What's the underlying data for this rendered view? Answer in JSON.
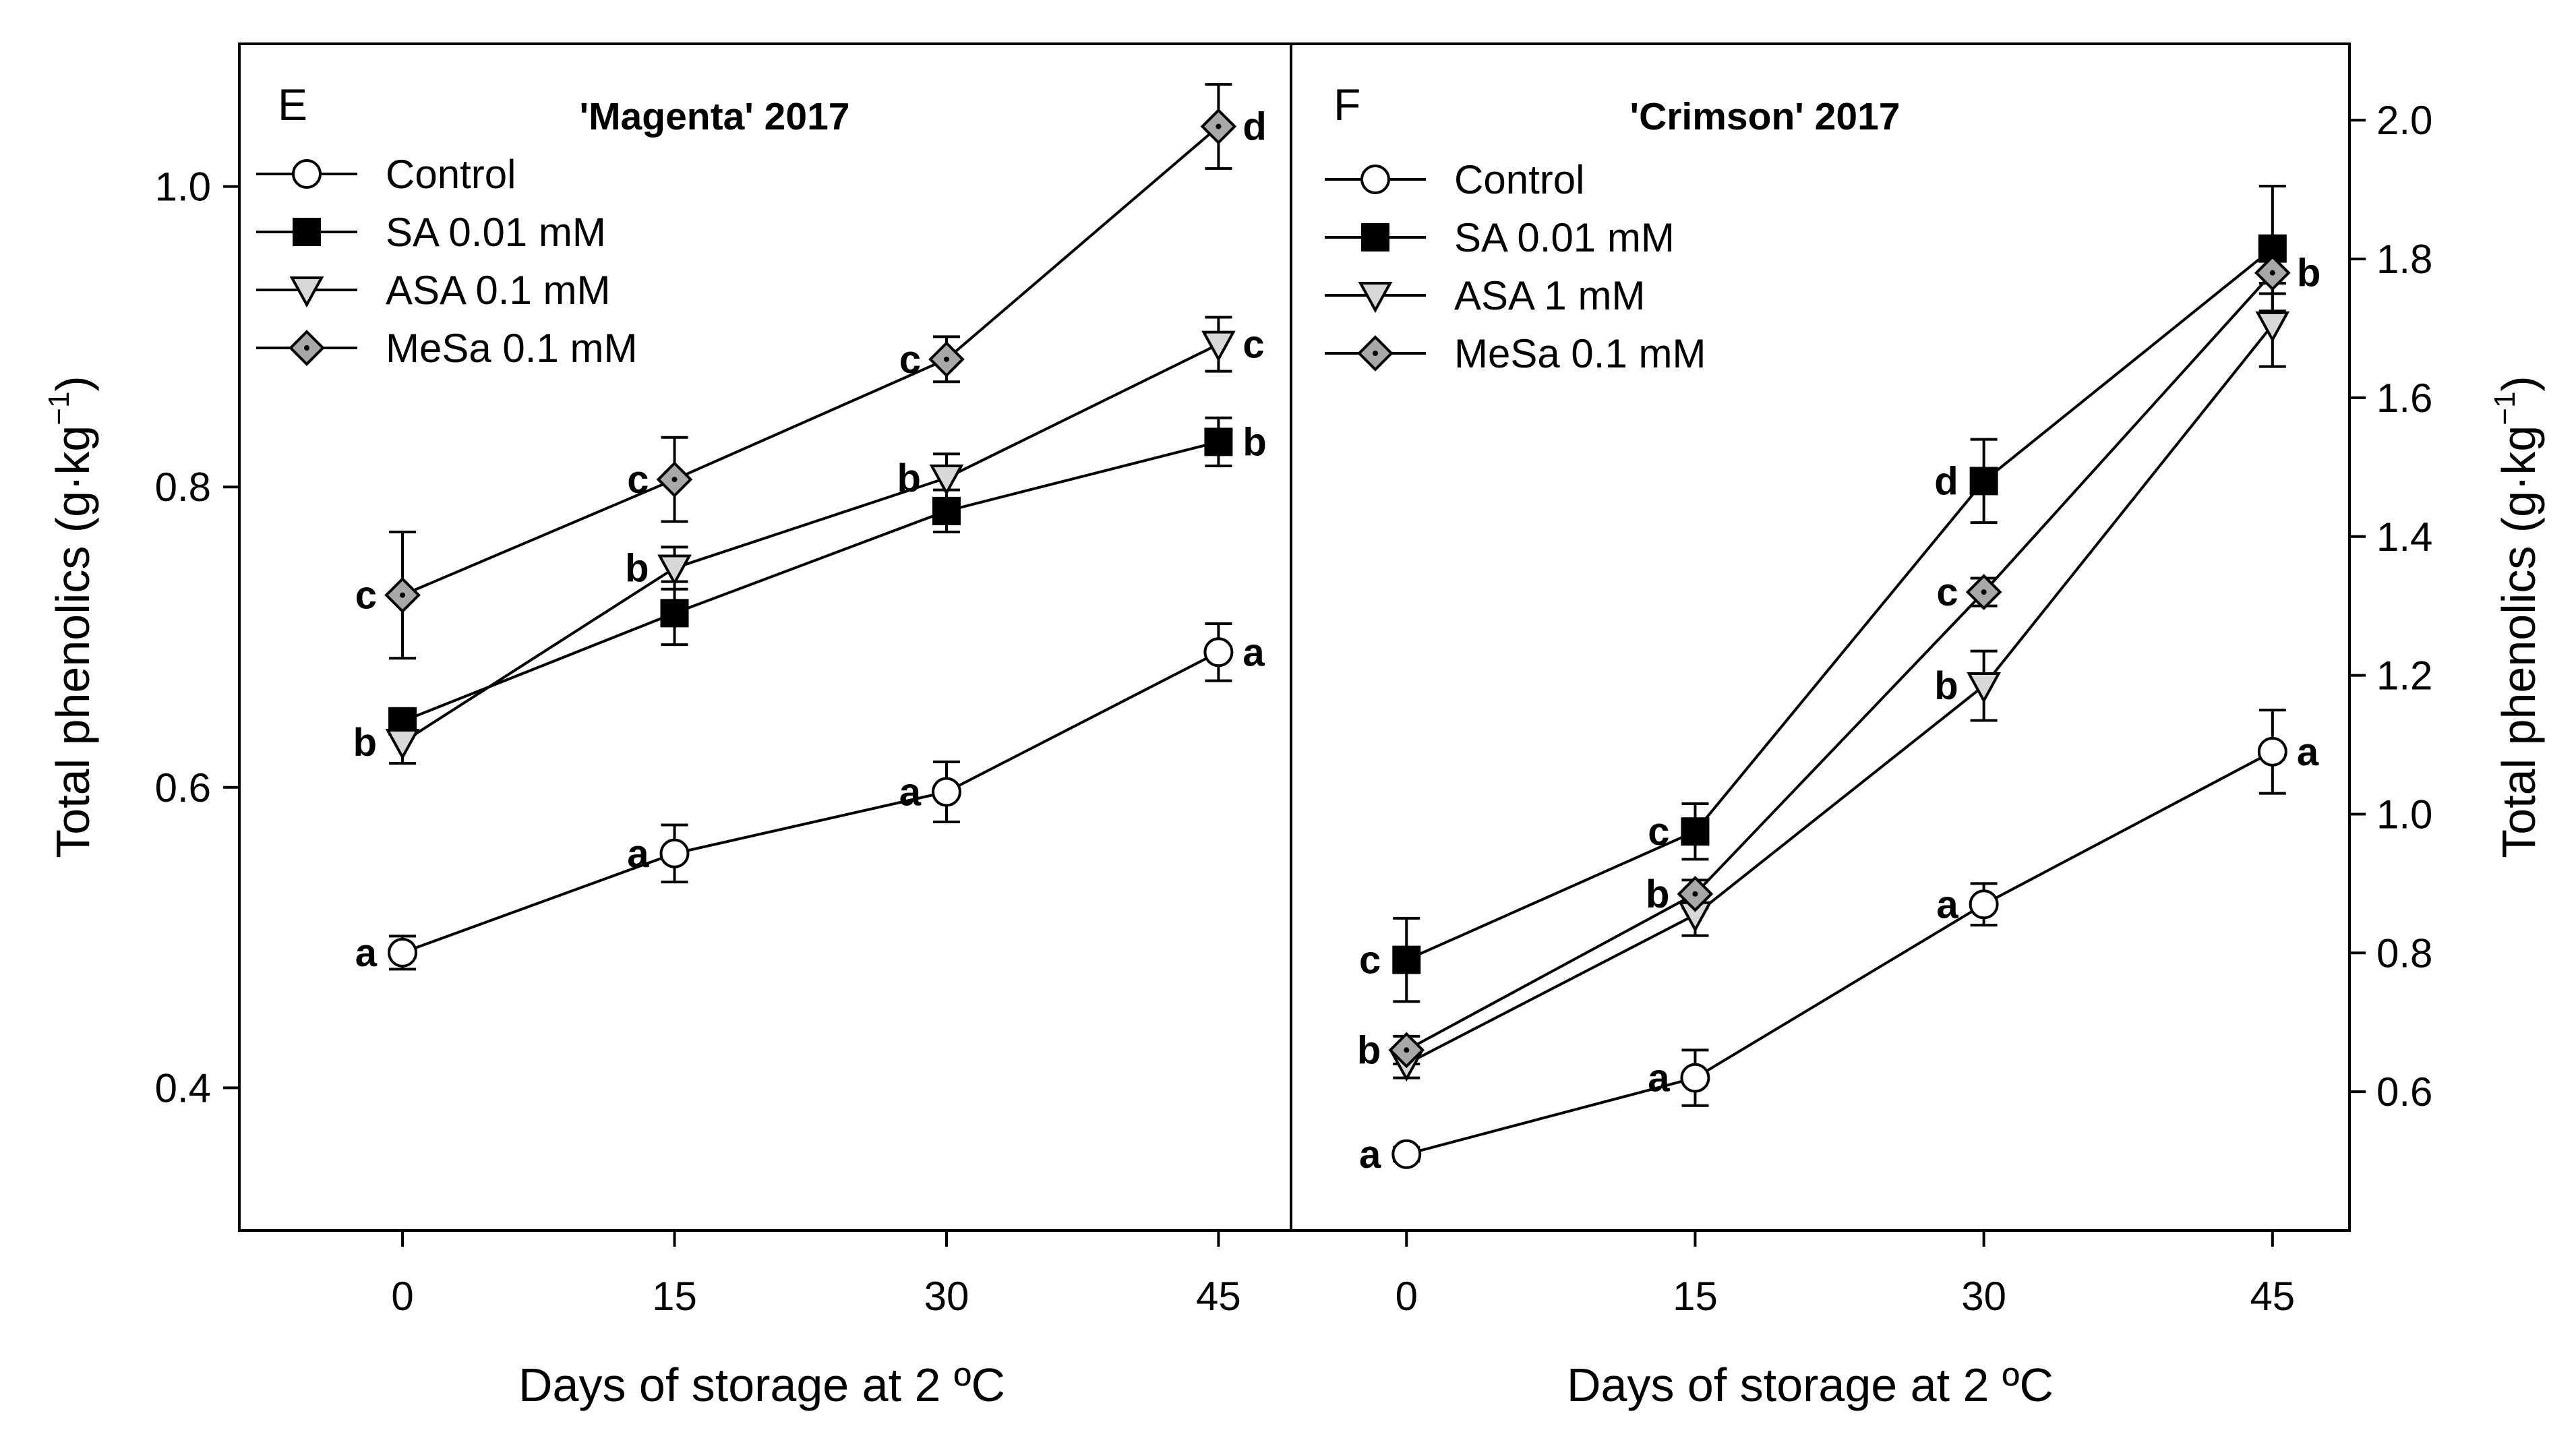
{
  "chart_data": [
    {
      "type": "line",
      "panel_label": "E",
      "title": "'Magenta' 2017",
      "xlabel": "Days of storage at 2 ºC",
      "ylabel": "Total phenolics (g·kg",
      "ylabel_exponent": "−1",
      "ylabel_close": ")",
      "x": [
        0,
        15,
        30,
        45
      ],
      "x_ticks": [
        "0",
        "15",
        "30",
        "45"
      ],
      "xlim": [
        -9,
        49
      ],
      "ylim": [
        0.305,
        1.095
      ],
      "y_ticks": [
        "0.4",
        "0.6",
        "0.8",
        "1.0"
      ],
      "y_tick_values": [
        0.4,
        0.6,
        0.8,
        1.0
      ],
      "series": [
        {
          "name": "Control",
          "marker": "circle",
          "values": [
            0.49,
            0.556,
            0.597,
            0.69
          ],
          "errors": [
            0.011,
            0.019,
            0.02,
            0.019
          ],
          "letters": [
            "a",
            "a",
            "a",
            "a"
          ],
          "letter_sides": [
            "left",
            "left",
            "left",
            "right"
          ]
        },
        {
          "name": "SA 0.01 mM",
          "marker": "square",
          "values": [
            0.644,
            0.716,
            0.784,
            0.83
          ],
          "errors": [
            0.007,
            0.021,
            0.014,
            0.016
          ],
          "letters": [
            "",
            "",
            "",
            "b"
          ],
          "letter_sides": [
            "left",
            "left",
            "left",
            "right"
          ]
        },
        {
          "name": "ASA 0.1 mM",
          "marker": "triangle-down",
          "values": [
            0.63,
            0.746,
            0.806,
            0.895
          ],
          "errors": [
            0.014,
            0.014,
            0.016,
            0.018
          ],
          "letters": [
            "b",
            "b",
            "b",
            "c"
          ],
          "letter_sides": [
            "left",
            "left",
            "left",
            "right"
          ]
        },
        {
          "name": "MeSa 0.1 mM",
          "marker": "diamond",
          "values": [
            0.728,
            0.805,
            0.885,
            1.04
          ],
          "errors": [
            0.042,
            0.028,
            0.015,
            0.028
          ],
          "letters": [
            "c",
            "c",
            "c",
            "d"
          ],
          "letter_sides": [
            "left",
            "left",
            "left",
            "right"
          ]
        }
      ]
    },
    {
      "type": "line",
      "panel_label": "F",
      "title": "'Crimson' 2017",
      "xlabel": "Days of storage at 2 ºC",
      "ylabel": "Total phenolics (g·kg",
      "ylabel_exponent": "−1",
      "ylabel_close": ")",
      "x": [
        0,
        15,
        30,
        45
      ],
      "x_ticks": [
        "0",
        "15",
        "30",
        "45"
      ],
      "xlim": [
        -6,
        49
      ],
      "ylim": [
        0.4,
        2.11
      ],
      "y_ticks": [
        "0.6",
        "0.8",
        "1.0",
        "1.2",
        "1.4",
        "1.6",
        "1.8",
        "2.0"
      ],
      "y_tick_values": [
        0.6,
        0.8,
        1.0,
        1.2,
        1.4,
        1.6,
        1.8,
        2.0
      ],
      "series": [
        {
          "name": "Control",
          "marker": "circle",
          "values": [
            0.51,
            0.62,
            0.87,
            1.09
          ],
          "errors": [
            0.01,
            0.04,
            0.03,
            0.06
          ],
          "letters": [
            "a",
            "a",
            "a",
            "a"
          ],
          "letter_sides": [
            "left",
            "left",
            "left",
            "right"
          ]
        },
        {
          "name": "SA 0.01 mM",
          "marker": "square",
          "values": [
            0.79,
            0.975,
            1.48,
            1.815
          ],
          "errors": [
            0.06,
            0.04,
            0.06,
            0.09
          ],
          "letters": [
            "c",
            "c",
            "d",
            ""
          ],
          "letter_sides": [
            "left",
            "left",
            "left",
            "right"
          ]
        },
        {
          "name": "ASA 1 mM",
          "marker": "triangle-down",
          "values": [
            0.64,
            0.855,
            1.185,
            1.705
          ],
          "errors": [
            0.02,
            0.03,
            0.05,
            0.06
          ],
          "letters": [
            "",
            "",
            "b",
            ""
          ],
          "letter_sides": [
            "left",
            "left",
            "left",
            "right"
          ]
        },
        {
          "name": "MeSa 0.1 mM",
          "marker": "diamond",
          "values": [
            0.66,
            0.885,
            1.32,
            1.78
          ],
          "errors": [
            0.02,
            0.02,
            0.02,
            0.03
          ],
          "letters": [
            "b",
            "b",
            "c",
            "b"
          ],
          "letter_sides": [
            "left",
            "left",
            "left",
            "right"
          ]
        }
      ]
    }
  ],
  "colors": {
    "line": "#000000",
    "control_fill": "#ffffff",
    "sa_fill": "#000000",
    "asa_fill": "#d8d8d8",
    "mesa_fill": "#a8a8a8",
    "mesa_dot": "#000000",
    "background": "#ffffff"
  }
}
